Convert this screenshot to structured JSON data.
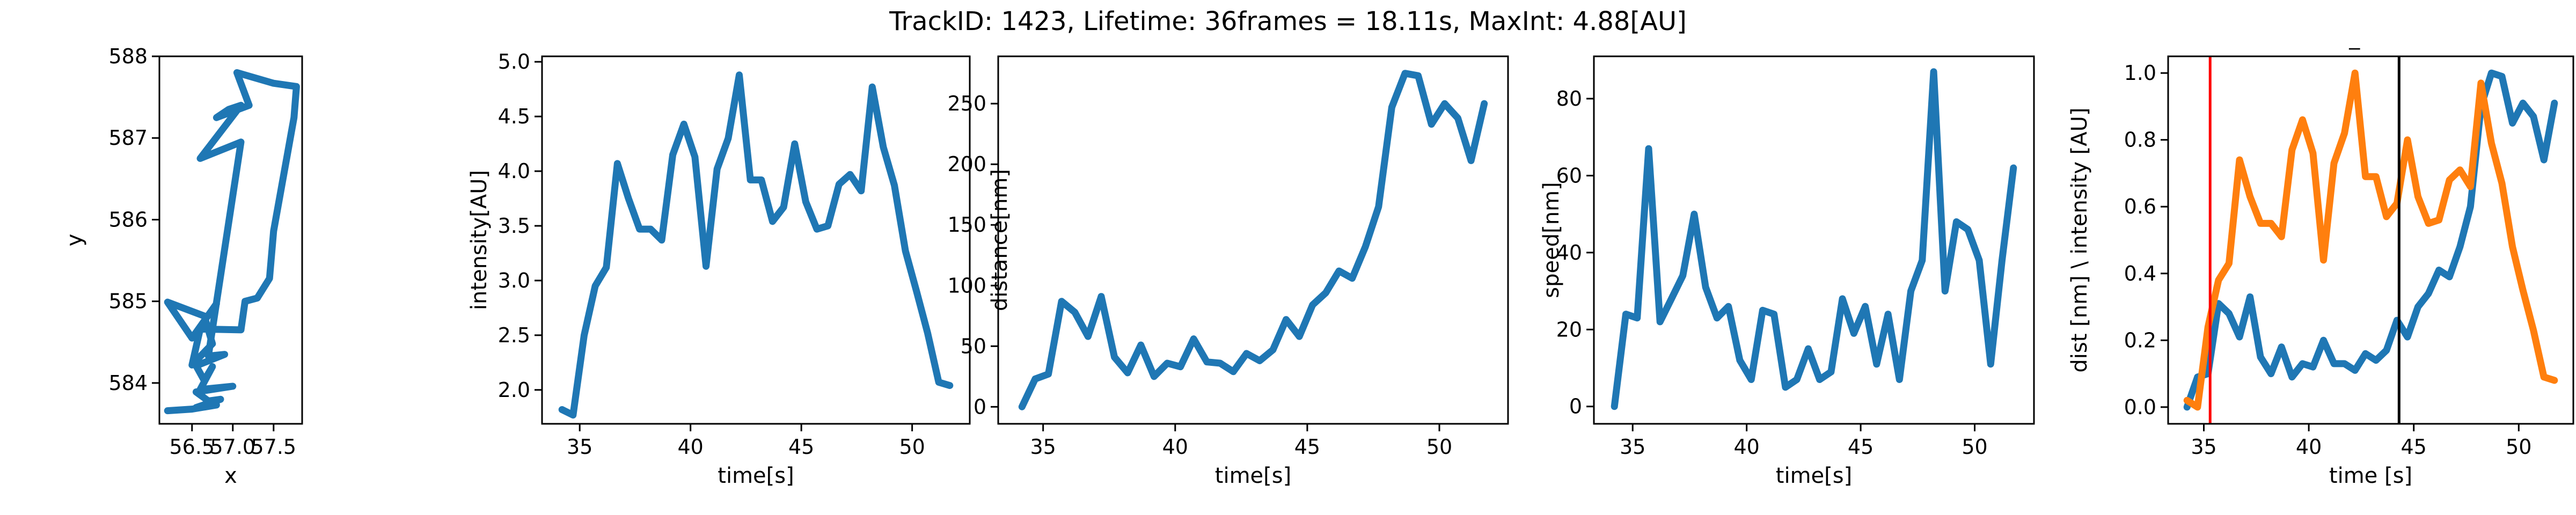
{
  "figure_title": "TrackID: 1423, Lifetime: 36frames = 18.11s, MaxInt: 4.88[AU]",
  "colors": {
    "blue": "#1f77b4",
    "orange": "#ff7f0e",
    "red": "#ff0000",
    "black": "#000000"
  },
  "chart_data": [
    {
      "type": "line",
      "xlabel": "x",
      "ylabel": "y",
      "xlim": [
        56.1,
        57.85
      ],
      "ylim": [
        583.5,
        588.0
      ],
      "xticks": [
        56.5,
        57.0,
        57.5
      ],
      "xticklabels": [
        "56.5",
        "57.0",
        "57.5"
      ],
      "yticks": [
        584,
        585,
        586,
        587,
        588
      ],
      "yticklabels": [
        "584",
        "585",
        "586",
        "587",
        "588"
      ],
      "series": [
        {
          "color": "#1f77b4",
          "x": [
            56.8,
            56.5,
            56.2,
            56.65,
            56.75,
            56.5,
            56.6,
            57.1,
            57.15,
            57.3,
            57.45,
            57.5,
            57.75,
            57.78,
            57.5,
            57.05,
            57.2,
            56.8,
            56.95,
            57.1,
            56.6,
            57.1,
            56.7,
            56.9,
            56.55,
            56.65,
            56.75,
            56.6,
            57.0,
            56.55,
            56.7,
            56.85,
            56.55,
            56.8,
            56.5,
            56.2
          ],
          "y": [
            584.97,
            584.55,
            584.99,
            584.82,
            584.48,
            584.22,
            584.66,
            584.65,
            585.0,
            585.04,
            585.28,
            585.86,
            587.25,
            587.63,
            587.67,
            587.8,
            587.4,
            587.25,
            587.35,
            587.4,
            586.75,
            586.95,
            584.33,
            584.35,
            584.21,
            584.03,
            584.2,
            583.92,
            583.96,
            583.89,
            583.78,
            583.8,
            583.7,
            583.73,
            583.68,
            583.66
          ]
        }
      ]
    },
    {
      "type": "line",
      "xlabel": "time[s]",
      "ylabel": "intensity[AU]",
      "xlim": [
        33.3,
        52.6
      ],
      "ylim": [
        1.69,
        5.05
      ],
      "xticks": [
        35,
        40,
        45,
        50
      ],
      "xticklabels": [
        "35",
        "40",
        "45",
        "50"
      ],
      "yticks": [
        2.0,
        2.5,
        3.0,
        3.5,
        4.0,
        4.5,
        5.0
      ],
      "yticklabels": [
        "2.0",
        "2.5",
        "3.0",
        "3.5",
        "4.0",
        "4.5",
        "5.0"
      ],
      "series": [
        {
          "color": "#1f77b4",
          "x": [
            34.2,
            34.7,
            35.2,
            35.7,
            36.2,
            36.7,
            37.2,
            37.7,
            38.2,
            38.7,
            39.2,
            39.7,
            40.2,
            40.7,
            41.2,
            41.7,
            42.2,
            42.7,
            43.2,
            43.7,
            44.2,
            44.7,
            45.2,
            45.7,
            46.2,
            46.7,
            47.2,
            47.7,
            48.2,
            48.7,
            49.2,
            49.7,
            50.2,
            50.7,
            51.2,
            51.7
          ],
          "y": [
            1.82,
            1.77,
            2.5,
            2.95,
            3.12,
            4.07,
            3.75,
            3.47,
            3.47,
            3.37,
            4.15,
            4.43,
            4.13,
            3.13,
            4.02,
            4.3,
            4.88,
            3.92,
            3.92,
            3.54,
            3.67,
            4.25,
            3.72,
            3.47,
            3.5,
            3.88,
            3.97,
            3.82,
            4.77,
            4.22,
            3.87,
            3.27,
            2.9,
            2.52,
            2.07,
            2.04
          ]
        }
      ]
    },
    {
      "type": "line",
      "xlabel": "time[s]",
      "ylabel": "distance[nm]",
      "xlim": [
        33.3,
        52.6
      ],
      "ylim": [
        -14,
        289
      ],
      "xticks": [
        35,
        40,
        45,
        50
      ],
      "xticklabels": [
        "35",
        "40",
        "45",
        "50"
      ],
      "yticks": [
        0,
        50,
        100,
        150,
        200,
        250
      ],
      "yticklabels": [
        "0",
        "50",
        "100",
        "150",
        "200",
        "250"
      ],
      "series": [
        {
          "color": "#1f77b4",
          "x": [
            34.2,
            34.7,
            35.2,
            35.7,
            36.2,
            36.7,
            37.2,
            37.7,
            38.2,
            38.7,
            39.2,
            39.7,
            40.2,
            40.7,
            41.2,
            41.7,
            42.2,
            42.7,
            43.2,
            43.7,
            44.2,
            44.7,
            45.2,
            45.7,
            46.2,
            46.7,
            47.2,
            47.7,
            48.2,
            48.7,
            49.2,
            49.7,
            50.2,
            50.7,
            51.2,
            51.7
          ],
          "y": [
            0,
            23,
            27,
            87,
            78,
            58,
            91,
            41,
            28,
            51,
            25,
            36,
            33,
            56,
            37,
            36,
            29,
            44,
            38,
            47,
            72,
            58,
            84,
            94,
            112,
            106,
            132,
            165,
            247,
            275,
            273,
            233,
            250,
            238,
            203,
            250
          ]
        }
      ]
    },
    {
      "type": "line",
      "xlabel": "time[s]",
      "ylabel": "speed[nm]",
      "xlim": [
        33.3,
        52.6
      ],
      "ylim": [
        -4.5,
        91
      ],
      "xticks": [
        35,
        40,
        45,
        50
      ],
      "xticklabels": [
        "35",
        "40",
        "45",
        "50"
      ],
      "yticks": [
        0,
        20,
        40,
        60,
        80
      ],
      "yticklabels": [
        "0",
        "20",
        "40",
        "60",
        "80"
      ],
      "series": [
        {
          "color": "#1f77b4",
          "x": [
            34.2,
            34.7,
            35.2,
            35.7,
            36.2,
            36.7,
            37.2,
            37.7,
            38.2,
            38.7,
            39.2,
            39.7,
            40.2,
            40.7,
            41.2,
            41.7,
            42.2,
            42.7,
            43.2,
            43.7,
            44.2,
            44.7,
            45.2,
            45.7,
            46.2,
            46.7,
            47.2,
            47.7,
            48.2,
            48.7,
            49.2,
            49.7,
            50.2,
            50.7,
            51.2,
            51.7
          ],
          "y": [
            0,
            24,
            23,
            67,
            22,
            28,
            34,
            50,
            31,
            23,
            26,
            12,
            7,
            25,
            24,
            5,
            7,
            15,
            7,
            9,
            28,
            19,
            26,
            11,
            24,
            7,
            30,
            38,
            87,
            30,
            48,
            46,
            38,
            11,
            38,
            62
          ]
        }
      ]
    },
    {
      "type": "line",
      "xlabel": "time [s]",
      "ylabel": "dist [nm] \\ intensity [AU]",
      "xlim": [
        33.3,
        52.6
      ],
      "ylim": [
        -0.05,
        1.05
      ],
      "xticks": [
        35,
        40,
        45,
        50
      ],
      "xticklabels": [
        "35",
        "40",
        "45",
        "50"
      ],
      "yticks": [
        0.0,
        0.2,
        0.4,
        0.6,
        0.8,
        1.0
      ],
      "yticklabels": [
        "0.0",
        "0.2",
        "0.4",
        "0.6",
        "0.8",
        "1.0"
      ],
      "top_mark": "_",
      "vlines": [
        {
          "x": 35.3,
          "color": "#ff0000"
        },
        {
          "x": 44.3,
          "color": "#000000"
        }
      ],
      "series": [
        {
          "color": "#1f77b4",
          "x": [
            34.2,
            34.7,
            35.2,
            35.7,
            36.2,
            36.7,
            37.2,
            37.7,
            38.2,
            38.7,
            39.2,
            39.7,
            40.2,
            40.7,
            41.2,
            41.7,
            42.2,
            42.7,
            43.2,
            43.7,
            44.2,
            44.7,
            45.2,
            45.7,
            46.2,
            46.7,
            47.2,
            47.7,
            48.2,
            48.7,
            49.2,
            49.7,
            50.2,
            50.7,
            51.2,
            51.7
          ],
          "y": [
            0.0,
            0.09,
            0.1,
            0.31,
            0.28,
            0.21,
            0.33,
            0.15,
            0.1,
            0.18,
            0.09,
            0.13,
            0.12,
            0.2,
            0.13,
            0.13,
            0.11,
            0.16,
            0.14,
            0.17,
            0.26,
            0.21,
            0.3,
            0.34,
            0.41,
            0.39,
            0.48,
            0.6,
            0.9,
            1.0,
            0.99,
            0.85,
            0.91,
            0.87,
            0.74,
            0.91
          ]
        },
        {
          "color": "#ff7f0e",
          "x": [
            34.2,
            34.7,
            35.2,
            35.7,
            36.2,
            36.7,
            37.2,
            37.7,
            38.2,
            38.7,
            39.2,
            39.7,
            40.2,
            40.7,
            41.2,
            41.7,
            42.2,
            42.7,
            43.2,
            43.7,
            44.2,
            44.7,
            45.2,
            45.7,
            46.2,
            46.7,
            47.2,
            47.7,
            48.2,
            48.7,
            49.2,
            49.7,
            50.2,
            50.7,
            51.2,
            51.7
          ],
          "y": [
            0.02,
            0.0,
            0.24,
            0.38,
            0.43,
            0.74,
            0.63,
            0.55,
            0.55,
            0.51,
            0.77,
            0.86,
            0.76,
            0.44,
            0.73,
            0.82,
            1.0,
            0.69,
            0.69,
            0.57,
            0.61,
            0.8,
            0.63,
            0.55,
            0.56,
            0.68,
            0.71,
            0.66,
            0.97,
            0.79,
            0.67,
            0.48,
            0.35,
            0.23,
            0.09,
            0.08
          ]
        }
      ]
    }
  ]
}
